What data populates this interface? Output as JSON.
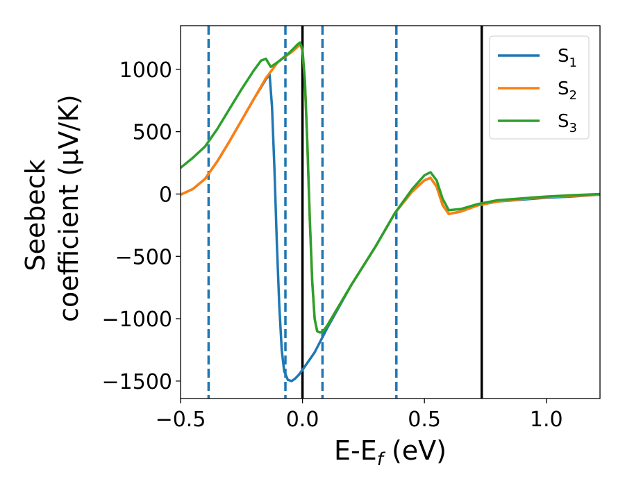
{
  "chart_data": {
    "type": "line",
    "xlabel": "E-E",
    "xlabel_sub": "f",
    "xlabel_unit": " (eV)",
    "ylabel_line1": "Seebeck",
    "ylabel_line2": "coefficient  (μV/K)",
    "xlim": [
      -0.5,
      1.22
    ],
    "ylim": [
      -1640,
      1350
    ],
    "xticks": [
      {
        "value": -0.5,
        "label": "−0.5"
      },
      {
        "value": 0.0,
        "label": "0.0"
      },
      {
        "value": 0.5,
        "label": "0.5"
      },
      {
        "value": 1.0,
        "label": "1.0"
      }
    ],
    "yticks": [
      {
        "value": 1000,
        "label": "1000"
      },
      {
        "value": 500,
        "label": "500"
      },
      {
        "value": 0,
        "label": "0"
      },
      {
        "value": -500,
        "label": "−500"
      },
      {
        "value": -1000,
        "label": "−1000"
      },
      {
        "value": -1500,
        "label": "−1500"
      }
    ],
    "grid": false,
    "legend": "top-right",
    "series": [
      {
        "name": "S",
        "sub": "1",
        "color": "#1f77b4",
        "points": [
          [
            -0.5,
            -5
          ],
          [
            -0.45,
            40
          ],
          [
            -0.4,
            120
          ],
          [
            -0.35,
            260
          ],
          [
            -0.3,
            420
          ],
          [
            -0.25,
            590
          ],
          [
            -0.2,
            760
          ],
          [
            -0.15,
            920
          ],
          [
            -0.135,
            960
          ],
          [
            -0.125,
            700
          ],
          [
            -0.115,
            200
          ],
          [
            -0.105,
            -400
          ],
          [
            -0.095,
            -900
          ],
          [
            -0.085,
            -1250
          ],
          [
            -0.075,
            -1420
          ],
          [
            -0.06,
            -1490
          ],
          [
            -0.045,
            -1500
          ],
          [
            -0.03,
            -1480
          ],
          [
            -0.015,
            -1450
          ],
          [
            0.0,
            -1410
          ],
          [
            0.05,
            -1270
          ],
          [
            0.1,
            -1080
          ],
          [
            0.2,
            -730
          ],
          [
            0.3,
            -420
          ],
          [
            0.38,
            -150
          ],
          [
            0.45,
            20
          ],
          [
            0.5,
            110
          ],
          [
            0.525,
            130
          ],
          [
            0.55,
            60
          ],
          [
            0.575,
            -90
          ],
          [
            0.6,
            -160
          ],
          [
            0.65,
            -140
          ],
          [
            0.72,
            -90
          ],
          [
            0.8,
            -60
          ],
          [
            0.9,
            -45
          ],
          [
            1.0,
            -30
          ],
          [
            1.1,
            -20
          ],
          [
            1.22,
            -5
          ]
        ]
      },
      {
        "name": "S",
        "sub": "2",
        "color": "#ff7f0e",
        "points": [
          [
            -0.5,
            -5
          ],
          [
            -0.45,
            40
          ],
          [
            -0.4,
            120
          ],
          [
            -0.35,
            260
          ],
          [
            -0.3,
            420
          ],
          [
            -0.25,
            590
          ],
          [
            -0.2,
            760
          ],
          [
            -0.15,
            930
          ],
          [
            -0.1,
            1060
          ],
          [
            -0.05,
            1130
          ],
          [
            -0.02,
            1180
          ],
          [
            -0.01,
            1200
          ],
          [
            0.0,
            1150
          ],
          [
            0.01,
            900
          ],
          [
            0.02,
            400
          ],
          [
            0.03,
            -200
          ],
          [
            0.04,
            -700
          ],
          [
            0.05,
            -1000
          ],
          [
            0.06,
            -1100
          ],
          [
            0.07,
            -1110
          ],
          [
            0.08,
            -1110
          ],
          [
            0.1,
            -1060
          ],
          [
            0.2,
            -730
          ],
          [
            0.3,
            -420
          ],
          [
            0.38,
            -150
          ],
          [
            0.45,
            20
          ],
          [
            0.5,
            110
          ],
          [
            0.525,
            130
          ],
          [
            0.55,
            60
          ],
          [
            0.575,
            -90
          ],
          [
            0.6,
            -160
          ],
          [
            0.65,
            -140
          ],
          [
            0.72,
            -90
          ],
          [
            0.8,
            -60
          ],
          [
            0.9,
            -40
          ],
          [
            1.0,
            -25
          ],
          [
            1.1,
            -15
          ],
          [
            1.22,
            -5
          ]
        ]
      },
      {
        "name": "S",
        "sub": "3",
        "color": "#2ca02c",
        "points": [
          [
            -0.5,
            210
          ],
          [
            -0.45,
            290
          ],
          [
            -0.4,
            380
          ],
          [
            -0.35,
            520
          ],
          [
            -0.3,
            680
          ],
          [
            -0.25,
            840
          ],
          [
            -0.2,
            990
          ],
          [
            -0.17,
            1070
          ],
          [
            -0.15,
            1085
          ],
          [
            -0.13,
            1020
          ],
          [
            -0.1,
            1060
          ],
          [
            -0.05,
            1140
          ],
          [
            -0.02,
            1200
          ],
          [
            -0.01,
            1215
          ],
          [
            0.0,
            1160
          ],
          [
            0.01,
            900
          ],
          [
            0.02,
            400
          ],
          [
            0.03,
            -200
          ],
          [
            0.04,
            -700
          ],
          [
            0.05,
            -1000
          ],
          [
            0.06,
            -1100
          ],
          [
            0.07,
            -1110
          ],
          [
            0.08,
            -1110
          ],
          [
            0.1,
            -1060
          ],
          [
            0.2,
            -730
          ],
          [
            0.3,
            -420
          ],
          [
            0.38,
            -150
          ],
          [
            0.45,
            40
          ],
          [
            0.5,
            150
          ],
          [
            0.525,
            175
          ],
          [
            0.55,
            110
          ],
          [
            0.575,
            -40
          ],
          [
            0.6,
            -130
          ],
          [
            0.65,
            -120
          ],
          [
            0.72,
            -80
          ],
          [
            0.8,
            -50
          ],
          [
            0.9,
            -35
          ],
          [
            1.0,
            -20
          ],
          [
            1.1,
            -10
          ],
          [
            1.22,
            0
          ]
        ]
      }
    ],
    "vlines": [
      {
        "x": -0.385,
        "style": "dashed",
        "color": "#1f77b4"
      },
      {
        "x": -0.07,
        "style": "dashed",
        "color": "#1f77b4"
      },
      {
        "x": 0.0,
        "style": "solid",
        "color": "#000000"
      },
      {
        "x": 0.082,
        "style": "dashed",
        "color": "#1f77b4"
      },
      {
        "x": 0.385,
        "style": "dashed",
        "color": "#1f77b4"
      },
      {
        "x": 0.735,
        "style": "solid",
        "color": "#000000"
      }
    ]
  }
}
